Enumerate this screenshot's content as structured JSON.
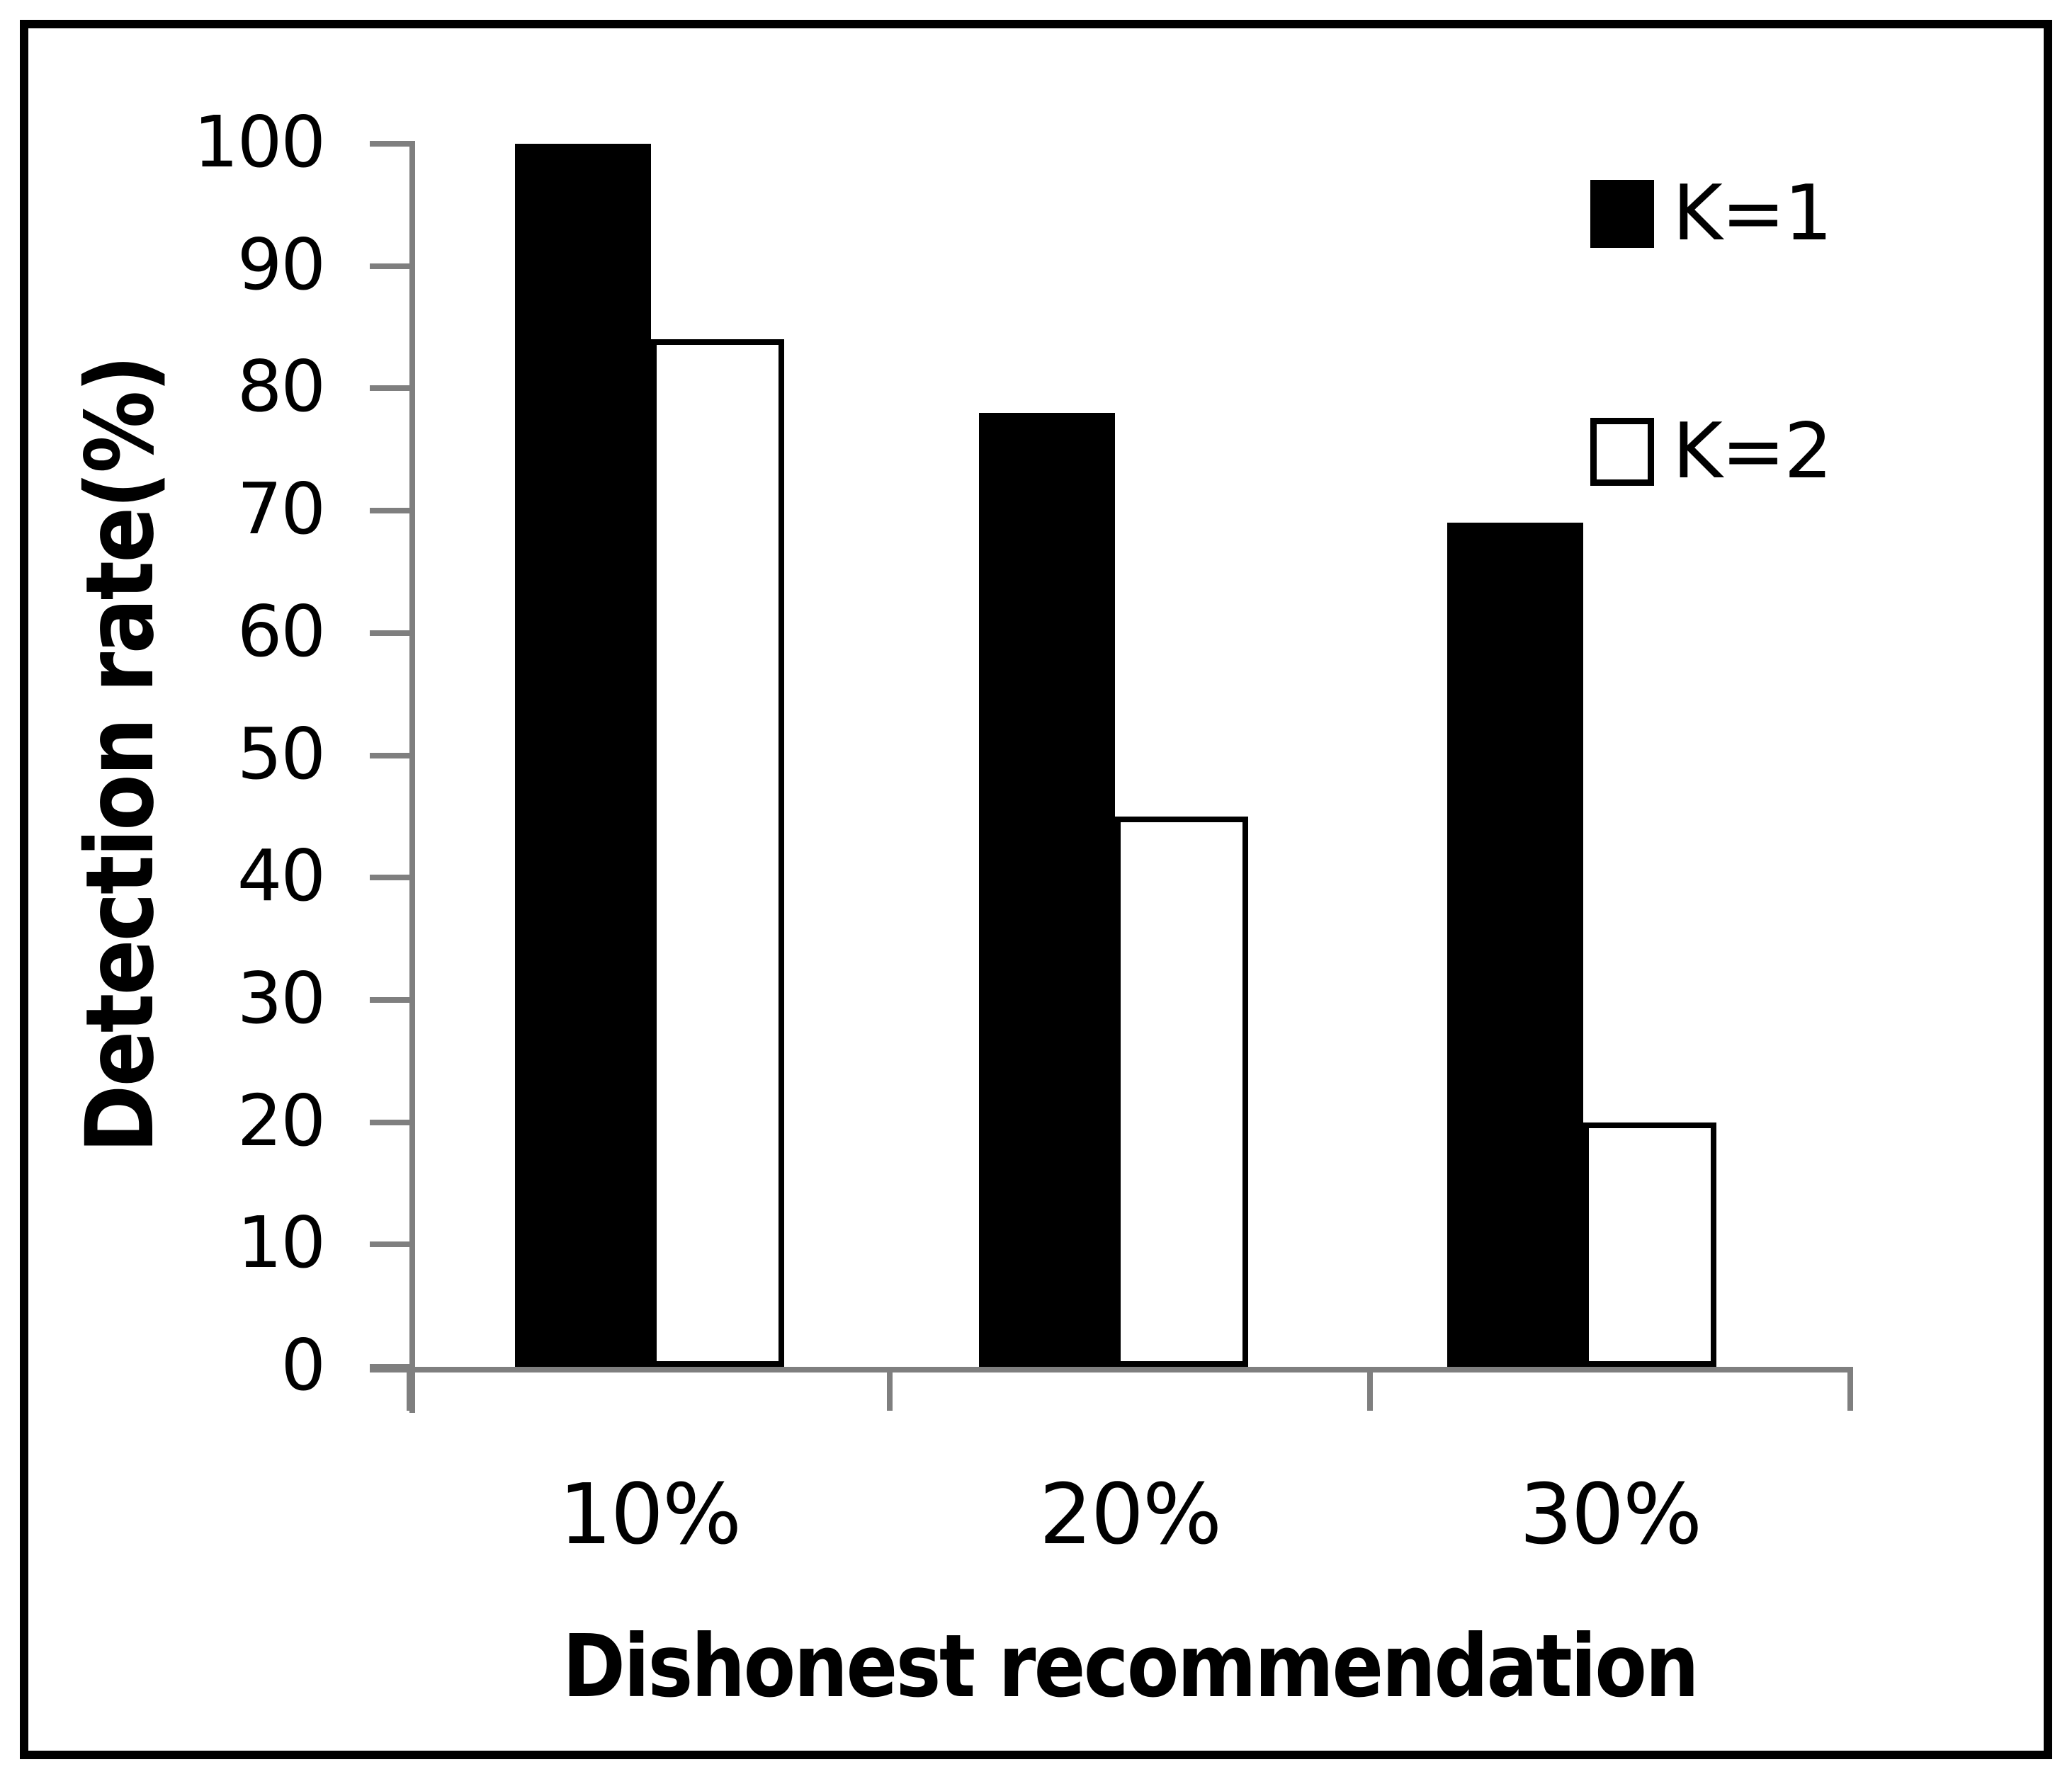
{
  "chart_data": {
    "type": "bar",
    "title": "",
    "categories": [
      "10%",
      "20%",
      "30%"
    ],
    "series": [
      {
        "name": "K=1",
        "fill": "#000000",
        "values": [
          100,
          78,
          69
        ]
      },
      {
        "name": "K=2",
        "fill": "#ffffff",
        "values": [
          84,
          45,
          20
        ]
      }
    ],
    "xlabel": "Dishonest recommendation",
    "ylabel": "Detection rate(%)",
    "ylim": [
      0,
      100
    ],
    "yticks": [
      0,
      10,
      20,
      30,
      40,
      50,
      60,
      70,
      80,
      90,
      100
    ],
    "grid": false,
    "legend_position": "top-right",
    "axis_color": "#7f7f7f",
    "bar_colors": {
      "k1": "#000000",
      "k2": "#ffffff"
    },
    "bar_border_color": "#000000"
  }
}
